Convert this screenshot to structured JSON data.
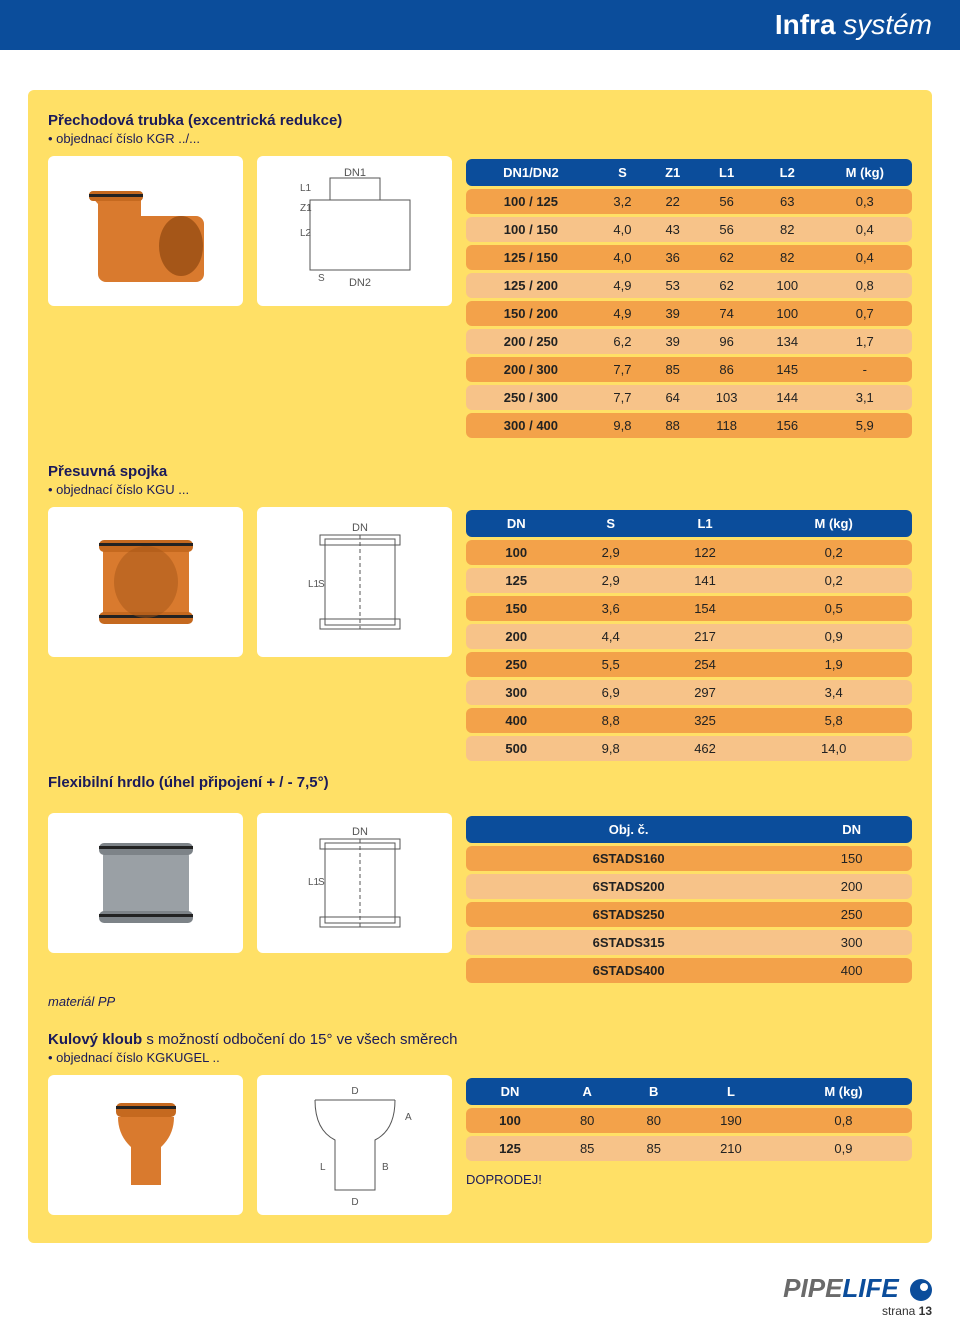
{
  "header": {
    "brand_bold": "Infra",
    "brand_light": " systém"
  },
  "sect1": {
    "title": "Přechodová trubka (excentrická redukce)",
    "bullet": "objednací číslo KGR ../...",
    "diagram_labels": [
      "DN1",
      "DN2",
      "L1",
      "Z1",
      "L2",
      "S"
    ],
    "table": {
      "columns": [
        "DN1/DN2",
        "S",
        "Z1",
        "L1",
        "L2",
        "M (kg)"
      ],
      "rows": [
        [
          "100 / 125",
          "3,2",
          "22",
          "56",
          "63",
          "0,3"
        ],
        [
          "100 / 150",
          "4,0",
          "43",
          "56",
          "82",
          "0,4"
        ],
        [
          "125 / 150",
          "4,0",
          "36",
          "62",
          "82",
          "0,4"
        ],
        [
          "125 / 200",
          "4,9",
          "53",
          "62",
          "100",
          "0,8"
        ],
        [
          "150 / 200",
          "4,9",
          "39",
          "74",
          "100",
          "0,7"
        ],
        [
          "200 / 250",
          "6,2",
          "39",
          "96",
          "134",
          "1,7"
        ],
        [
          "200 / 300",
          "7,7",
          "85",
          "86",
          "145",
          "-"
        ],
        [
          "250 / 300",
          "7,7",
          "64",
          "103",
          "144",
          "3,1"
        ],
        [
          "300 / 400",
          "9,8",
          "88",
          "118",
          "156",
          "5,9"
        ]
      ],
      "header_bg": "#0b4d9b",
      "row_bg": "#f3a24a",
      "row_alt_bg": "#f7c389"
    }
  },
  "sect2": {
    "title": "Přesuvná spojka",
    "bullet": "objednací číslo KGU ...",
    "diagram_labels": [
      "DN",
      "L1",
      "S"
    ],
    "table": {
      "columns": [
        "DN",
        "S",
        "L1",
        "M (kg)"
      ],
      "rows": [
        [
          "100",
          "2,9",
          "122",
          "0,2"
        ],
        [
          "125",
          "2,9",
          "141",
          "0,2"
        ],
        [
          "150",
          "3,6",
          "154",
          "0,5"
        ],
        [
          "200",
          "4,4",
          "217",
          "0,9"
        ],
        [
          "250",
          "5,5",
          "254",
          "1,9"
        ],
        [
          "300",
          "6,9",
          "297",
          "3,4"
        ],
        [
          "400",
          "8,8",
          "325",
          "5,8"
        ],
        [
          "500",
          "9,8",
          "462",
          "14,0"
        ]
      ]
    },
    "subtitle": "Flexibilní hrdlo (úhel připojení  + / - 7,5°)"
  },
  "sect3": {
    "diagram_labels": [
      "DN",
      "L1",
      "S"
    ],
    "table": {
      "columns": [
        "Obj. č.",
        "DN"
      ],
      "rows": [
        [
          "6STADS160",
          "150"
        ],
        [
          "6STADS200",
          "200"
        ],
        [
          "6STADS250",
          "250"
        ],
        [
          "6STADS315",
          "300"
        ],
        [
          "6STADS400",
          "400"
        ]
      ]
    },
    "note": "materiál PP"
  },
  "sect4": {
    "title_bold": "Kulový kloub",
    "title_rest": "  s možností odbočení do 15° ve všech směrech",
    "bullet": "objednací číslo KGKUGEL ..",
    "diagram_labels": [
      "D",
      "A",
      "L",
      "B",
      "D"
    ],
    "table": {
      "columns": [
        "DN",
        "A",
        "B",
        "L",
        "M (kg)"
      ],
      "rows": [
        [
          "100",
          "80",
          "80",
          "190",
          "0,8"
        ],
        [
          "125",
          "85",
          "85",
          "210",
          "0,9"
        ]
      ]
    },
    "doprodej": "DOPRODEJ!"
  },
  "footer": {
    "logo_a": "PIPE",
    "logo_b": "LIFE",
    "page_label": "strana ",
    "page_num": "13"
  },
  "colors": {
    "pipe_orange": "#d97a2e",
    "pipe_grey": "#9aa0a5"
  }
}
